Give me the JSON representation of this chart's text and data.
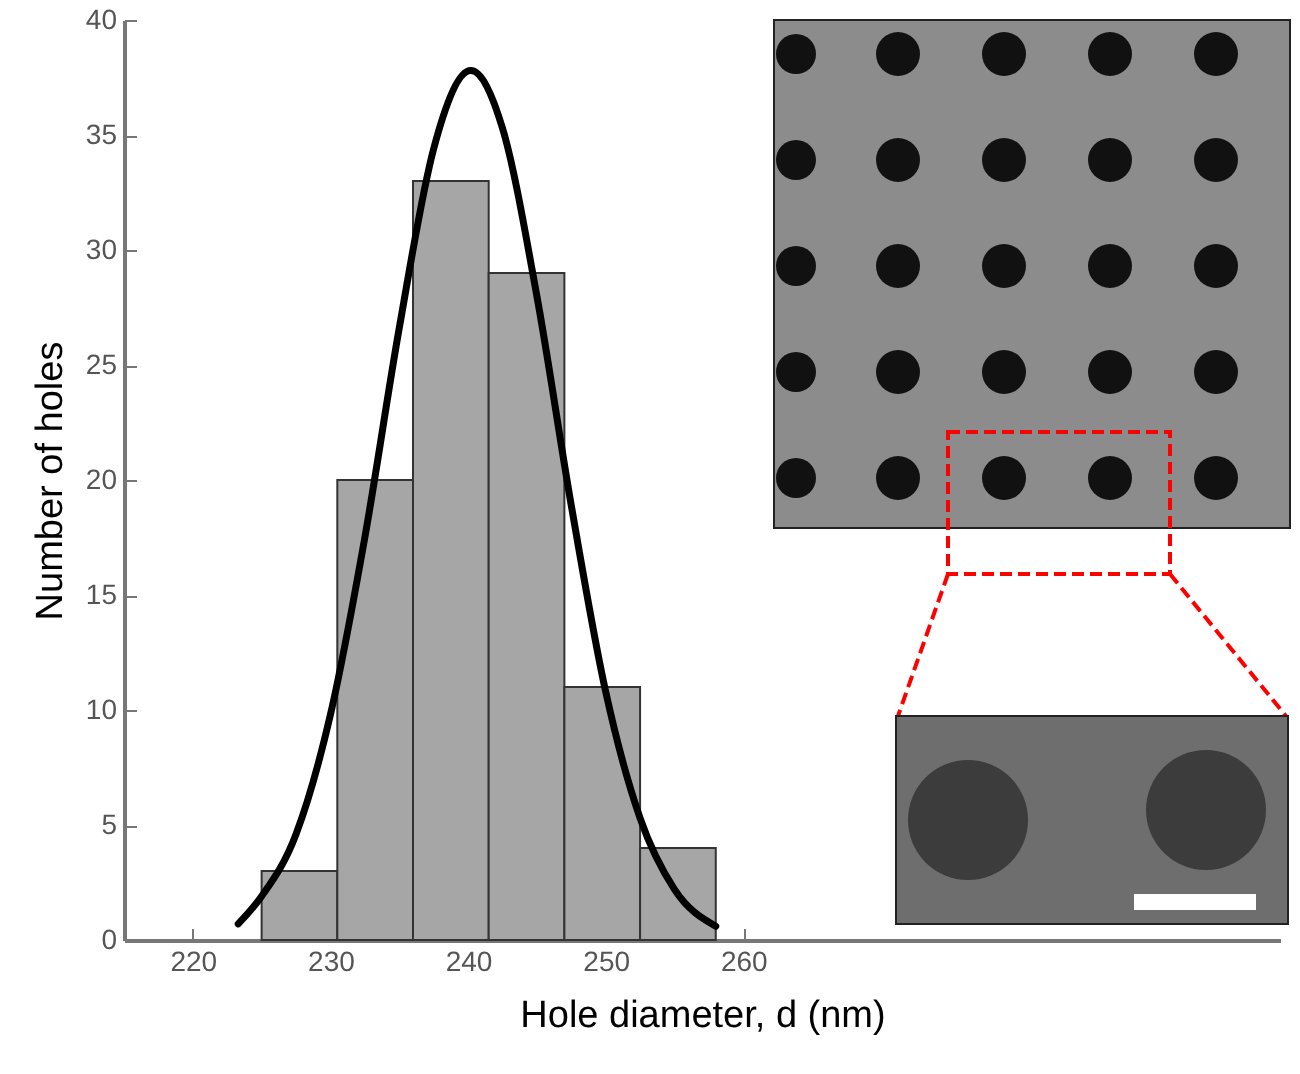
{
  "chart_data": {
    "type": "histogram",
    "xlabel": "Hole diameter, d (nm)",
    "ylabel": "Number of holes",
    "xlim": [
      215,
      299
    ],
    "xticks": [
      220,
      230,
      240,
      250,
      260
    ],
    "ylim": [
      0,
      40
    ],
    "yticks": [
      0,
      5,
      10,
      15,
      20,
      25,
      30,
      35,
      40
    ],
    "grid": false,
    "series": [
      {
        "bins": [
          225,
          230.5,
          236,
          241.5,
          247,
          252.5,
          258
        ],
        "values": [
          3,
          20,
          33,
          29,
          11,
          4
        ],
        "color": "#a6a6a6"
      },
      {
        "type": "line",
        "x": [
          223.3,
          225,
          227.5,
          230,
          232.5,
          235,
          237.5,
          240.2,
          242.5,
          245,
          247.5,
          250,
          252.5,
          255,
          258
        ],
        "values": [
          0.7,
          1.9,
          4.6,
          9.8,
          17.5,
          26.6,
          34.4,
          37.8,
          35.3,
          28.0,
          18.9,
          10.8,
          5.3,
          2.2,
          0.6
        ],
        "color": "#000000"
      }
    ]
  }
}
